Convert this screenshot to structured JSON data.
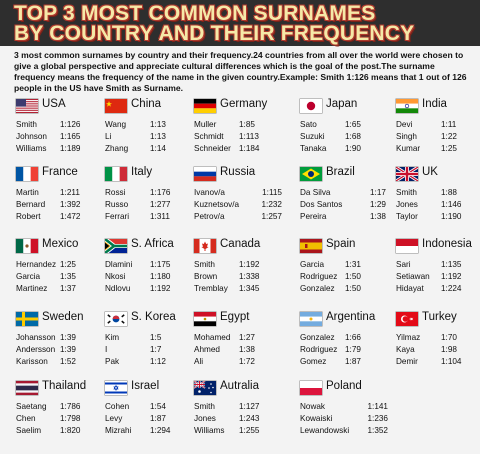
{
  "title": {
    "line1": "TOP 3 MOST COMMON SURNAMES",
    "line2": "BY COUNTRY AND THEIR FREQUENCY"
  },
  "description": {
    "p1": "3 most common surnames by country and their frequency.24 countries from all over the world were chosen to give a global perspective and appreciate cultural differences which is the goal of the post.The surname frequency means the frequency of the name in the given country.Example: Smith 1:126 means that 1 out of 126 people in the US have Smith as Surname."
  },
  "countries": [
    {
      "name": "USA",
      "flag": "usa-flag",
      "rows": [
        [
          "Smith",
          "1:126"
        ],
        [
          "Johnson",
          "1:165"
        ],
        [
          "Williams",
          "1:189"
        ]
      ]
    },
    {
      "name": "China",
      "flag": "china-flag",
      "rows": [
        [
          "Wang",
          "1:13"
        ],
        [
          "Li",
          "1:13"
        ],
        [
          "Zhang",
          "1:14"
        ]
      ]
    },
    {
      "name": "Germany",
      "flag": "germany-flag",
      "rows": [
        [
          "Muller",
          "1:85"
        ],
        [
          "Schmidt",
          "1:113"
        ],
        [
          "Schneider",
          "1:184"
        ]
      ]
    },
    {
      "name": "Japan",
      "flag": "japan-flag",
      "rows": [
        [
          "Sato",
          "1:65"
        ],
        [
          "Suzuki",
          "1:68"
        ],
        [
          "Tanaka",
          "1:90"
        ]
      ]
    },
    {
      "name": "India",
      "flag": "india-flag",
      "rows": [
        [
          "Devi",
          "1:11"
        ],
        [
          "Singh",
          "1:22"
        ],
        [
          "Kumar",
          "1:25"
        ]
      ]
    },
    {
      "name": "France",
      "flag": "france-flag",
      "rows": [
        [
          "Martin",
          "1:211"
        ],
        [
          "Bernard",
          "1:392"
        ],
        [
          "Robert",
          "1:472"
        ]
      ]
    },
    {
      "name": "Italy",
      "flag": "italy-flag",
      "rows": [
        [
          "Rossi",
          "1:176"
        ],
        [
          "Russo",
          "1:277"
        ],
        [
          "Ferrari",
          "1:311"
        ]
      ]
    },
    {
      "name": "Russia",
      "flag": "russia-flag",
      "rows": [
        [
          "Ivanov/a",
          "1:115"
        ],
        [
          "Kuznetsov/a",
          "1:232"
        ],
        [
          "Petrov/a",
          "1:257"
        ]
      ]
    },
    {
      "name": "Brazil",
      "flag": "brazil-flag",
      "rows": [
        [
          "Da Silva",
          "1:17"
        ],
        [
          "Dos Santos",
          "1:29"
        ],
        [
          "Pereira",
          "1:38"
        ]
      ]
    },
    {
      "name": "UK",
      "flag": "uk-flag",
      "rows": [
        [
          "Smith",
          "1:88"
        ],
        [
          "Jones",
          "1:146"
        ],
        [
          "Taylor",
          "1:190"
        ]
      ]
    },
    {
      "name": "Mexico",
      "flag": "mexico-flag",
      "rows": [
        [
          "Hernandez",
          "1:25"
        ],
        [
          "Garcia",
          "1:35"
        ],
        [
          "Martinez",
          "1:37"
        ]
      ]
    },
    {
      "name": "S. Africa",
      "flag": "south-africa-flag",
      "rows": [
        [
          "Dlamini",
          "1:175"
        ],
        [
          "Nkosi",
          "1:180"
        ],
        [
          "Ndlovu",
          "1:192"
        ]
      ]
    },
    {
      "name": "Canada",
      "flag": "canada-flag",
      "rows": [
        [
          "Smith",
          "1:192"
        ],
        [
          "Brown",
          "1:338"
        ],
        [
          "Tremblay",
          "1:345"
        ]
      ]
    },
    {
      "name": "Spain",
      "flag": "spain-flag",
      "rows": [
        [
          "Garcia",
          "1:31"
        ],
        [
          "Rodriguez",
          "1:50"
        ],
        [
          "Gonzalez",
          "1:50"
        ]
      ]
    },
    {
      "name": "Indonesia",
      "flag": "indonesia-flag",
      "rows": [
        [
          "Sari",
          "1:135"
        ],
        [
          "Setiawan",
          "1:192"
        ],
        [
          "Hidayat",
          "1:224"
        ]
      ]
    },
    {
      "name": "Sweden",
      "flag": "sweden-flag",
      "rows": [
        [
          "Johansson",
          "1:39"
        ],
        [
          "Andersson",
          "1:39"
        ],
        [
          "Karisson",
          "1:52"
        ]
      ]
    },
    {
      "name": "S. Korea",
      "flag": "south-korea-flag",
      "rows": [
        [
          "Kim",
          "1:5"
        ],
        [
          "I",
          "1:7"
        ],
        [
          "Pak",
          "1:12"
        ]
      ]
    },
    {
      "name": "Egypt",
      "flag": "egypt-flag",
      "rows": [
        [
          "Mohamed",
          "1:27"
        ],
        [
          "Ahmed",
          "1:38"
        ],
        [
          "Ali",
          "1:72"
        ]
      ]
    },
    {
      "name": "Argentina",
      "flag": "argentina-flag",
      "rows": [
        [
          "Gonzalez",
          "1:66"
        ],
        [
          "Rodriguez",
          "1:79"
        ],
        [
          "Gomez",
          "1:87"
        ]
      ]
    },
    {
      "name": "Turkey",
      "flag": "turkey-flag",
      "rows": [
        [
          "Yilmaz",
          "1:70"
        ],
        [
          "Kaya",
          "1:98"
        ],
        [
          "Demir",
          "1:104"
        ]
      ]
    },
    {
      "name": "Thailand",
      "flag": "thailand-flag",
      "rows": [
        [
          "Saetang",
          "1:786"
        ],
        [
          "Chen",
          "1:798"
        ],
        [
          "Saelim",
          "1:820"
        ]
      ]
    },
    {
      "name": "Israel",
      "flag": "israel-flag",
      "rows": [
        [
          "Cohen",
          "1:54"
        ],
        [
          "Levy",
          "1:87"
        ],
        [
          "Mizrahi",
          "1:294"
        ]
      ]
    },
    {
      "name": "Autralia",
      "flag": "australia-flag",
      "rows": [
        [
          "Smith",
          "1:127"
        ],
        [
          "Jones",
          "1:243"
        ],
        [
          "Williams",
          "1:255"
        ]
      ]
    },
    {
      "name": "Poland",
      "flag": "poland-flag",
      "rows": [
        [
          "Nowak",
          "1:141"
        ],
        [
          "Kowaiski",
          "1:236"
        ],
        [
          "Lewandowski",
          "1:352"
        ]
      ]
    }
  ]
}
